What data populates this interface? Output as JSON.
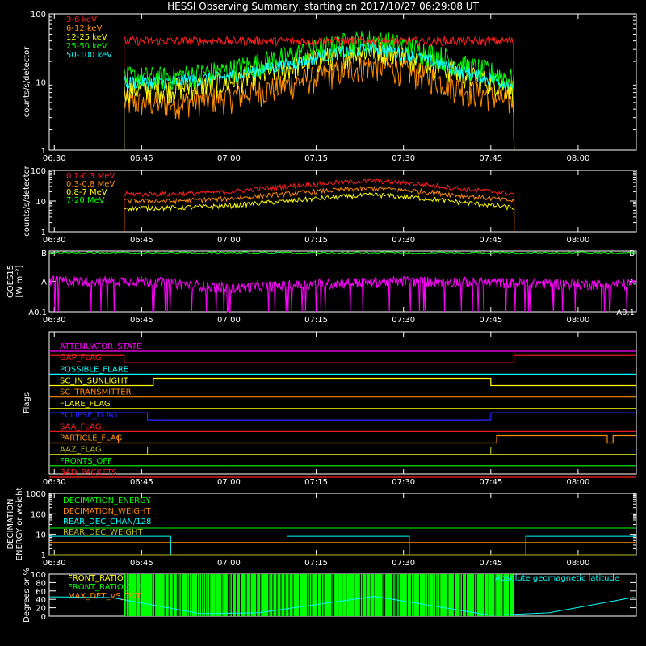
{
  "title": "HESSI Observing Summary, starting on 2017/10/27 06:29:08 UT",
  "time_ticks": [
    "06:30",
    "06:45",
    "07:00",
    "07:15",
    "07:30",
    "07:45",
    "08:00"
  ],
  "colors": {
    "red": "#ff2020",
    "orange": "#ff8c00",
    "yellow": "#ffff00",
    "green": "#00ff00",
    "cyan": "#00ffff",
    "magenta": "#ff00ff",
    "blue": "#2a2aff",
    "white": "#ffffff",
    "olive": "#b8b820"
  },
  "chart_data": [
    {
      "type": "line",
      "ylabel": "counts/s/detector",
      "yscale": "log",
      "ylim": [
        1,
        100
      ],
      "y_ticks": [
        "1",
        "10",
        "100"
      ],
      "series": [
        {
          "name": "3-6 keV",
          "color": "#ff2020",
          "x": [
            "06:42",
            "06:50",
            "07:00",
            "07:10",
            "07:20",
            "07:25",
            "07:30",
            "07:40",
            "07:49"
          ],
          "values": [
            40,
            40,
            40,
            40,
            40,
            40,
            40,
            40,
            40
          ]
        },
        {
          "name": "6-12 keV",
          "color": "#ff8c00",
          "x": [
            "06:42",
            "06:50",
            "07:00",
            "07:10",
            "07:20",
            "07:25",
            "07:30",
            "07:40",
            "07:49"
          ],
          "values": [
            5,
            5,
            6,
            9,
            15,
            18,
            15,
            8,
            5
          ]
        },
        {
          "name": "12-25 keV",
          "color": "#ffff00",
          "x": [
            "06:42",
            "06:50",
            "07:00",
            "07:10",
            "07:20",
            "07:25",
            "07:30",
            "07:40",
            "07:49"
          ],
          "values": [
            8,
            8,
            10,
            16,
            26,
            30,
            25,
            13,
            8
          ]
        },
        {
          "name": "25-50 keV",
          "color": "#00ff00",
          "x": [
            "06:42",
            "06:50",
            "07:00",
            "07:10",
            "07:20",
            "07:25",
            "07:30",
            "07:40",
            "07:49"
          ],
          "values": [
            12,
            12,
            15,
            24,
            38,
            42,
            35,
            18,
            11
          ]
        },
        {
          "name": "50-100 keV",
          "color": "#00ffff",
          "x": [
            "06:42",
            "06:50",
            "07:00",
            "07:10",
            "07:20",
            "07:25",
            "07:30",
            "07:40",
            "07:49"
          ],
          "values": [
            10,
            10,
            12,
            18,
            28,
            32,
            26,
            14,
            9
          ]
        }
      ]
    },
    {
      "type": "line",
      "ylabel": "counts/s/detector",
      "yscale": "log",
      "ylim": [
        1,
        100
      ],
      "y_ticks": [
        "1",
        "10",
        "100"
      ],
      "series": [
        {
          "name": "0.1-0.3 MeV",
          "color": "#ff2020",
          "x": [
            "06:42",
            "06:50",
            "07:00",
            "07:10",
            "07:20",
            "07:25",
            "07:30",
            "07:40",
            "07:49"
          ],
          "values": [
            17,
            17,
            20,
            30,
            42,
            45,
            40,
            25,
            17
          ]
        },
        {
          "name": "0.3-0.8 MeV",
          "color": "#ff8c00",
          "x": [
            "06:42",
            "06:50",
            "07:00",
            "07:10",
            "07:20",
            "07:25",
            "07:30",
            "07:40",
            "07:49"
          ],
          "values": [
            10,
            10,
            12,
            17,
            24,
            26,
            23,
            15,
            10
          ]
        },
        {
          "name": "0.8-7 MeV",
          "color": "#ffff00",
          "x": [
            "06:42",
            "06:50",
            "07:00",
            "07:10",
            "07:20",
            "07:25",
            "07:30",
            "07:40",
            "07:49"
          ],
          "values": [
            6,
            6,
            7,
            10,
            14,
            16,
            14,
            9,
            6
          ]
        },
        {
          "name": "7-20 MeV",
          "color": "#00ff00",
          "x": [],
          "values": []
        }
      ]
    },
    {
      "type": "line",
      "ylabel": "GOES15",
      "ylabel2": "[W m⁻²]",
      "y_ticks": [
        "A0.1",
        "A",
        "B"
      ],
      "series": [
        {
          "name": "",
          "color": "#00ff00",
          "x": [
            "06:30",
            "07:00",
            "07:30",
            "08:00"
          ],
          "values": [
            3.0,
            3.0,
            3.0,
            3.0
          ]
        },
        {
          "name": "",
          "color": "#ff00ff",
          "x": [
            "06:30",
            "06:45",
            "07:00",
            "07:15",
            "07:30",
            "07:45",
            "08:00"
          ],
          "values": [
            0.6,
            0.6,
            0.4,
            0.5,
            0.6,
            0.55,
            0.5
          ]
        }
      ]
    },
    {
      "type": "line",
      "ylabel": "Flags",
      "flags": [
        {
          "name": "ATTENUATOR_STATE",
          "color": "#ff00ff",
          "x": [
            "06:30"
          ],
          "values": [
            0
          ]
        },
        {
          "name": "GAP_FLAG",
          "color": "#ff2020",
          "x": [
            "06:30",
            "06:42",
            "06:42",
            "07:49",
            "07:49"
          ],
          "values": [
            1,
            1,
            0,
            0,
            1
          ]
        },
        {
          "name": "POSSIBLE_FLARE",
          "color": "#00ffff",
          "x": [
            "06:30"
          ],
          "values": [
            0
          ]
        },
        {
          "name": "SC_IN_SUNLIGHT",
          "color": "#ffff00",
          "x": [
            "06:30",
            "06:47",
            "06:47",
            "07:45",
            "07:45"
          ],
          "values": [
            0,
            0,
            1,
            1,
            0
          ]
        },
        {
          "name": "SC_TRANSMITTER",
          "color": "#ff8c00",
          "x": [
            "06:30"
          ],
          "values": [
            0
          ]
        },
        {
          "name": "FLARE_FLAG",
          "color": "#ffff00",
          "x": [
            "06:30"
          ],
          "values": [
            0
          ]
        },
        {
          "name": "ECLIPSE_FLAG",
          "color": "#2a2aff",
          "x": [
            "06:30",
            "06:46",
            "06:46",
            "07:45",
            "07:45"
          ],
          "values": [
            1,
            1,
            0,
            0,
            1
          ]
        },
        {
          "name": "SAA_FLAG",
          "color": "#ff2020",
          "x": [
            "06:30"
          ],
          "values": [
            0
          ]
        },
        {
          "name": "PARTICLE_FLAG",
          "color": "#ff8c00",
          "x": [
            "06:30",
            "06:41",
            "06:41",
            "06:41",
            "07:46",
            "07:46",
            "08:05",
            "08:05",
            "08:06",
            "08:06"
          ],
          "values": [
            0,
            0,
            1,
            0,
            0,
            1,
            1,
            0,
            0,
            1
          ]
        },
        {
          "name": "AAZ_FLAG",
          "color": "#b8b820",
          "x": [
            "06:30",
            "06:46",
            "06:46",
            "06:46",
            "07:45",
            "07:45",
            "07:45"
          ],
          "values": [
            0,
            0,
            1,
            0,
            0,
            1,
            0
          ]
        },
        {
          "name": "FRONTS_OFF",
          "color": "#00ff00",
          "x": [
            "06:30"
          ],
          "values": [
            0
          ]
        },
        {
          "name": "BAD_PACKETS",
          "color": "#ff2020",
          "x": [
            "06:30"
          ],
          "values": [
            0
          ]
        }
      ]
    },
    {
      "type": "line",
      "ylabel": "DECIMATION",
      "ylabel2": "ENERGY or weight",
      "yscale": "log",
      "ylim": [
        1,
        1000
      ],
      "y_ticks": [
        "1",
        "10",
        "100",
        "1000"
      ],
      "series": [
        {
          "name": "DECIMATION_ENERGY",
          "color": "#00ff00",
          "x": [
            "06:30",
            "08:10"
          ],
          "values": [
            20,
            20
          ]
        },
        {
          "name": "DECIMATION_WEIGHT",
          "color": "#ff8c00",
          "x": [
            "06:30",
            "08:10"
          ],
          "values": [
            4,
            4
          ]
        },
        {
          "name": "REAR_DEC_CHAN/128",
          "color": "#00ffff",
          "x": [
            "06:30",
            "06:50",
            "06:50",
            "07:10",
            "07:10",
            "07:31",
            "07:31",
            "07:51",
            "07:51",
            "08:10"
          ],
          "values": [
            8,
            8,
            1,
            1,
            8,
            8,
            1,
            1,
            8,
            8
          ]
        },
        {
          "name": "REAR_DEC_WEIGHT",
          "color": "#b8b820",
          "x": [
            "06:30",
            "08:10"
          ],
          "values": [
            1,
            1
          ]
        }
      ]
    },
    {
      "type": "line",
      "ylabel": "Degrees or %",
      "ylim": [
        0,
        100
      ],
      "y_ticks": [
        "0",
        "20",
        "40",
        "60",
        "80",
        "100"
      ],
      "series": [
        {
          "name": "FRONT_RATIO",
          "color": "#ffff00",
          "x": [],
          "values": []
        },
        {
          "name": "FRONT_RATIO_1225",
          "color": "#00ff00",
          "x": [
            "06:42",
            "07:49"
          ],
          "values": [
            100,
            100
          ]
        },
        {
          "name": "MAX_DET_VS_TOT",
          "color": "#ff8c00",
          "x": [],
          "values": []
        },
        {
          "name": "Absolute geomagnetic latitude",
          "color": "#00ffff",
          "x": [
            "06:30",
            "06:40",
            "06:55",
            "07:05",
            "07:25",
            "07:45",
            "07:55",
            "08:10"
          ],
          "values": [
            46,
            44,
            6,
            8,
            47,
            2,
            8,
            46
          ]
        }
      ]
    }
  ]
}
